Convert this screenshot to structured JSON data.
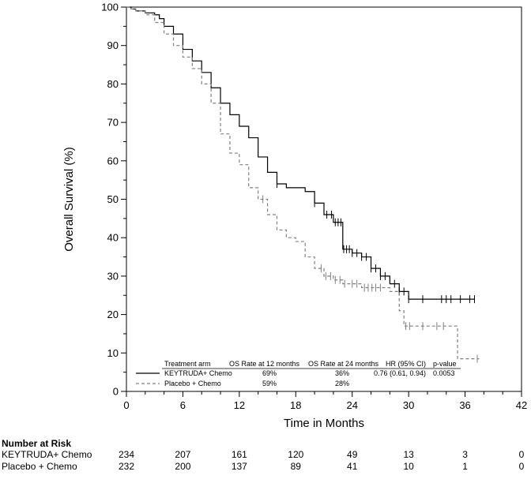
{
  "chart_data": {
    "type": "line",
    "title": "",
    "xlabel": "Time in Months",
    "ylabel": "Overall Survival (%)",
    "xlim": [
      0,
      42
    ],
    "ylim": [
      0,
      100
    ],
    "x_ticks": [
      0,
      6,
      12,
      18,
      24,
      30,
      36,
      42
    ],
    "y_ticks": [
      0,
      10,
      20,
      30,
      40,
      50,
      60,
      70,
      80,
      90,
      100
    ],
    "grid": false,
    "series": [
      {
        "name": "KEYTRUDA+ Chemo",
        "color": "#000000",
        "line_style": "solid",
        "points": [
          [
            0,
            100
          ],
          [
            0.5,
            99.5
          ],
          [
            1,
            99
          ],
          [
            2,
            98.5
          ],
          [
            3,
            98
          ],
          [
            3.5,
            97
          ],
          [
            4,
            95
          ],
          [
            5,
            93
          ],
          [
            6,
            89
          ],
          [
            7,
            86
          ],
          [
            8,
            83
          ],
          [
            9,
            79
          ],
          [
            10,
            75
          ],
          [
            11,
            72
          ],
          [
            12,
            69
          ],
          [
            13,
            66
          ],
          [
            14,
            61
          ],
          [
            15,
            57
          ],
          [
            16,
            54
          ],
          [
            17,
            53
          ],
          [
            18,
            53
          ],
          [
            19,
            52
          ],
          [
            20,
            49
          ],
          [
            21,
            46
          ],
          [
            22,
            44
          ],
          [
            23,
            37
          ],
          [
            24,
            36
          ],
          [
            25,
            35
          ],
          [
            26,
            32
          ],
          [
            27,
            30
          ],
          [
            28,
            28
          ],
          [
            29,
            26
          ],
          [
            30,
            24
          ],
          [
            31,
            24
          ],
          [
            33,
            24
          ],
          [
            35,
            24
          ],
          [
            37,
            24
          ]
        ],
        "censor_x": [
          16,
          20,
          21.3,
          21.8,
          22.2,
          22.5,
          22.8,
          23.1,
          23.4,
          23.7,
          24,
          24.5,
          25,
          25.5,
          26,
          26.5,
          27,
          27.5,
          28.5,
          29,
          29.5,
          30,
          31.5,
          33.5,
          34,
          34.5,
          35.5,
          36.5,
          37
        ]
      },
      {
        "name": "Placebo + Chemo",
        "color": "#808080",
        "line_style": "dashed",
        "points": [
          [
            0,
            100
          ],
          [
            0.5,
            99.5
          ],
          [
            1,
            99
          ],
          [
            2,
            98
          ],
          [
            3,
            96
          ],
          [
            4,
            93
          ],
          [
            5,
            90
          ],
          [
            6,
            87
          ],
          [
            7,
            84
          ],
          [
            8,
            80
          ],
          [
            9,
            75
          ],
          [
            10,
            67
          ],
          [
            11,
            62
          ],
          [
            12,
            59
          ],
          [
            13,
            53
          ],
          [
            14,
            50
          ],
          [
            15,
            46
          ],
          [
            16,
            42
          ],
          [
            17,
            40
          ],
          [
            18,
            39
          ],
          [
            19,
            35
          ],
          [
            20,
            32
          ],
          [
            21,
            30
          ],
          [
            22,
            29
          ],
          [
            23,
            28
          ],
          [
            24,
            28
          ],
          [
            25,
            27
          ],
          [
            26,
            27
          ],
          [
            27,
            27
          ],
          [
            28,
            26
          ],
          [
            29,
            21
          ],
          [
            29.5,
            17
          ],
          [
            30,
            17
          ],
          [
            32,
            17
          ],
          [
            34,
            17
          ],
          [
            35,
            17
          ],
          [
            35.2,
            8.5
          ],
          [
            37.5,
            8.5
          ]
        ],
        "censor_x": [
          14.5,
          20.7,
          21.2,
          21.7,
          22.2,
          22.7,
          23.2,
          24,
          24.5,
          25.3,
          25.7,
          26.1,
          26.5,
          27,
          29.7,
          30.1,
          31.5,
          33,
          33.7,
          37.3
        ]
      }
    ],
    "legend": {
      "placement": "bottom-right",
      "headers": [
        "Treatment arm",
        "OS Rate at 12 months",
        "OS Rate at 24 months",
        "HR (95% CI)",
        "p-value"
      ],
      "rows": [
        [
          "KEYTRUDA+ Chemo",
          "69%",
          "36%",
          "0.76 (0.61, 0.94)",
          "0.0053"
        ],
        [
          "Placebo + Chemo",
          "59%",
          "28%",
          "",
          ""
        ]
      ]
    },
    "risk_table": {
      "title": "Number at Risk",
      "timepoints": [
        0,
        6,
        12,
        18,
        24,
        30,
        36,
        42
      ],
      "rows": [
        {
          "label": "KEYTRUDA+ Chemo",
          "values": [
            "234",
            "207",
            "161",
            "120",
            "49",
            "13",
            "3",
            "0"
          ]
        },
        {
          "label": "Placebo + Chemo",
          "values": [
            "232",
            "200",
            "137",
            "89",
            "41",
            "10",
            "1",
            "0"
          ]
        }
      ]
    }
  }
}
